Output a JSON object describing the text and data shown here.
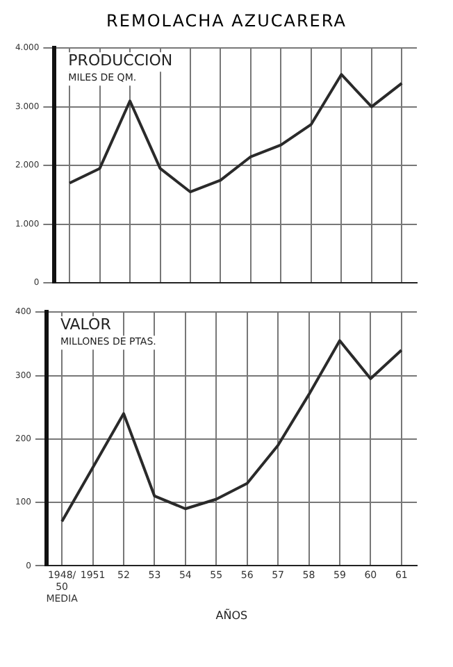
{
  "chart_data": [
    {
      "type": "line",
      "title": "REMOLACHA AZUCARERA",
      "subtitle": "PRODUCCION",
      "ylabel": "MILES DE QM.",
      "categories": [
        null,
        null,
        null,
        null,
        null,
        null,
        null,
        null,
        null,
        null,
        null,
        null
      ],
      "series": [
        {
          "color": "#2a2a2a",
          "values": [
            1700,
            1950,
            3100,
            1950,
            1550,
            1750,
            2150,
            2350,
            2700,
            3550,
            3000,
            3400
          ]
        }
      ],
      "ylim": [
        0,
        4000
      ],
      "yticks": [
        0,
        {
          "value": 1000,
          "label": "1.000"
        },
        {
          "value": 2000,
          "label": "2.000"
        },
        {
          "value": 3000,
          "label": "3.000"
        },
        {
          "value": 4000,
          "label": "4.000"
        }
      ],
      "grid": true,
      "marker": "none",
      "line_style": "solid"
    },
    {
      "type": "line",
      "subtitle": "VALOR",
      "ylabel": "MILLONES DE PTAS.",
      "xlabel": "AÑOS",
      "categories": [
        "1948/50 MEDIA",
        "1951",
        "52",
        "53",
        "54",
        "55",
        "56",
        "57",
        "58",
        "59",
        "60",
        "61"
      ],
      "series": [
        {
          "color": "#2a2a2a",
          "values": [
            70,
            155,
            240,
            110,
            90,
            105,
            130,
            190,
            270,
            355,
            295,
            340
          ]
        }
      ],
      "ylim": [
        0,
        400
      ],
      "yticks": [
        0,
        100,
        200,
        300,
        400
      ],
      "grid": true,
      "marker": "none",
      "line_style": "solid"
    }
  ]
}
